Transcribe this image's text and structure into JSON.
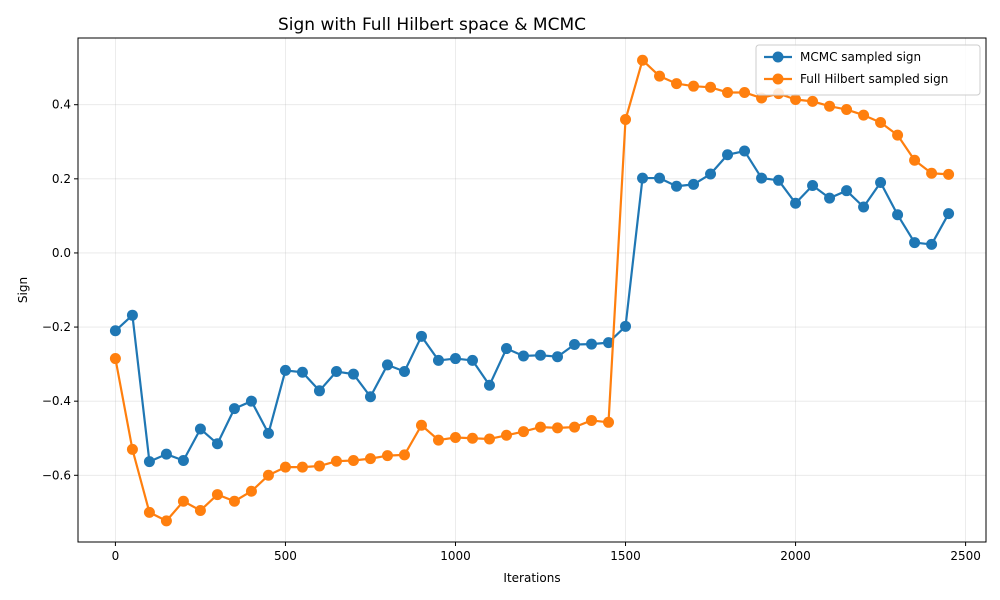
{
  "chart_data": {
    "type": "line",
    "title": "Sign with Full Hilbert space & MCMC",
    "xlabel": "Iterations",
    "ylabel": "Sign",
    "xlim": [
      -110,
      2560
    ],
    "ylim": [
      -0.78,
      0.58
    ],
    "xticks": [
      0,
      500,
      1000,
      1500,
      2000,
      2500
    ],
    "yticks": [
      -0.6,
      -0.4,
      -0.2,
      0.0,
      0.2,
      0.4
    ],
    "xtick_labels": [
      "0",
      "500",
      "1000",
      "1500",
      "2000",
      "2500"
    ],
    "ytick_labels": [
      "−0.6",
      "−0.4",
      "−0.2",
      "0.0",
      "0.2",
      "0.4"
    ],
    "grid": true,
    "legend_position": "top-right",
    "x": [
      0,
      50,
      100,
      150,
      200,
      250,
      300,
      350,
      400,
      450,
      500,
      550,
      600,
      650,
      700,
      750,
      800,
      850,
      900,
      950,
      1000,
      1050,
      1100,
      1150,
      1200,
      1250,
      1300,
      1350,
      1400,
      1450,
      1500,
      1550,
      1600,
      1650,
      1700,
      1750,
      1800,
      1850,
      1900,
      1950,
      2000,
      2050,
      2100,
      2150,
      2200,
      2250,
      2300,
      2350,
      2400,
      2450
    ],
    "series": [
      {
        "name": "MCMC sampled sign",
        "color": "#1f77b4",
        "values": [
          -0.21,
          -0.168,
          -0.563,
          -0.543,
          -0.56,
          -0.475,
          -0.515,
          -0.42,
          -0.4,
          -0.487,
          -0.317,
          -0.322,
          -0.372,
          -0.32,
          -0.327,
          -0.388,
          -0.302,
          -0.32,
          -0.225,
          -0.29,
          -0.285,
          -0.29,
          -0.357,
          -0.258,
          -0.278,
          -0.276,
          -0.28,
          -0.247,
          -0.246,
          -0.242,
          -0.198,
          0.202,
          0.202,
          0.18,
          0.185,
          0.213,
          0.265,
          0.275,
          0.202,
          0.196,
          0.134,
          0.182,
          0.148,
          0.168,
          0.124,
          0.19,
          0.103,
          0.028,
          0.023,
          0.106
        ]
      },
      {
        "name": "Full Hilbert sampled sign",
        "color": "#ff7f0e",
        "values": [
          -0.285,
          -0.53,
          -0.7,
          -0.723,
          -0.67,
          -0.695,
          -0.652,
          -0.67,
          -0.643,
          -0.6,
          -0.578,
          -0.578,
          -0.575,
          -0.562,
          -0.56,
          -0.555,
          -0.547,
          -0.545,
          -0.465,
          -0.505,
          -0.498,
          -0.5,
          -0.502,
          -0.492,
          -0.482,
          -0.47,
          -0.472,
          -0.47,
          -0.452,
          -0.457,
          0.36,
          0.52,
          0.477,
          0.457,
          0.45,
          0.447,
          0.433,
          0.433,
          0.418,
          0.43,
          0.414,
          0.409,
          0.396,
          0.387,
          0.372,
          0.352,
          0.318,
          0.25,
          0.215,
          0.212
        ]
      }
    ]
  }
}
